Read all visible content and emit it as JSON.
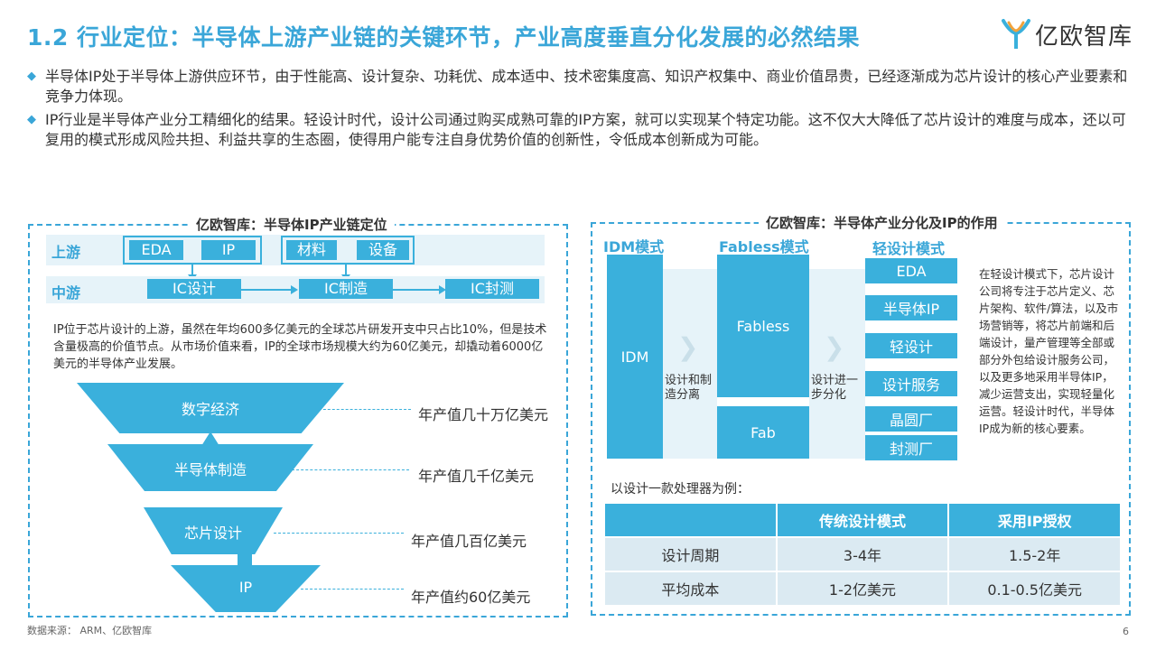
{
  "title": "1.2 行业定位：半导体上游产业链的关键环节，产业高度垂直分化发展的必然结果",
  "logo": {
    "text": "亿欧智库"
  },
  "bullets": [
    "半导体IP处于半导体上游供应环节，由于性能高、设计复杂、功耗优、成本适中、技术密集度高、知识产权集中、商业价值昂贵，已经逐渐成为芯片设计的核心产业要素和竞争力体现。",
    "IP行业是半导体产业分工精细化的结果。轻设计时代，设计公司通过购买成熟可靠的IP方案，就可以实现某个特定功能。这不仅大大降低了芯片设计的难度与成本，还以可复用的模式形成风险共担、利益共享的生态圈，使得用户能专注自身优势价值的创新性，令低成本创新成为可能。"
  ],
  "left_panel": {
    "title": "亿欧智库：半导体IP产业链定位",
    "upstream_label": "上游",
    "midstream_label": "中游",
    "upstream_items": [
      "EDA",
      "IP",
      "材料",
      "设备"
    ],
    "midstream_items": [
      "IC设计",
      "IC制造",
      "IC封测"
    ],
    "paragraph": "IP位于芯片设计的上游，虽然在年均600多亿美元的全球芯片研发开支中只占比10%，但是技术含量极高的价值节点。从市场价值来看，IP的全球市场规模大约为60亿美元，却撬动着6000亿美元的半导体产业发展。",
    "funnel": [
      {
        "label": "数字经济",
        "value": "年产值几十万亿美元"
      },
      {
        "label": "半导体制造",
        "value": "年产值几千亿美元"
      },
      {
        "label": "芯片设计",
        "value": "年产值几百亿美元"
      },
      {
        "label": "IP",
        "value": "年产值约60亿美元"
      }
    ]
  },
  "right_panel": {
    "title": "亿欧智库：半导体产业分化及IP的作用",
    "modes": [
      "IDM模式",
      "Fabless模式",
      "轻设计模式"
    ],
    "idm_block": "IDM",
    "fabless_block": "Fabless",
    "fab_block": "Fab",
    "step1": "设计和制造分离",
    "step2": "设计进一步分化",
    "light_items": [
      "EDA",
      "半导体IP",
      "轻设计",
      "设计服务",
      "晶圆厂",
      "封测厂"
    ],
    "description": "在轻设计模式下，芯片设计公司将专注于芯片定义、芯片架构、软件/算法，以及市场营销等，将芯片前端和后端设计，量产管理等全部或部分外包给设计服务公司，以及更多地采用半导体IP，减少运营支出，实现轻量化运营。轻设计时代，半导体IP成为新的核心要素。",
    "example_caption": "以设计一款处理器为例：",
    "table": {
      "headers": [
        "",
        "传统设计模式",
        "采用IP授权"
      ],
      "rows": [
        [
          "设计周期",
          "3-4年",
          "1.5-2年"
        ],
        [
          "平均成本",
          "1-2亿美元",
          "0.1-0.5亿美元"
        ]
      ]
    }
  },
  "footer": "数据来源： ARM、亿欧智库",
  "page_number": "6",
  "colors": {
    "accent": "#3ab0dc",
    "title": "#3aa6d8",
    "light": "#e6f3f9"
  }
}
